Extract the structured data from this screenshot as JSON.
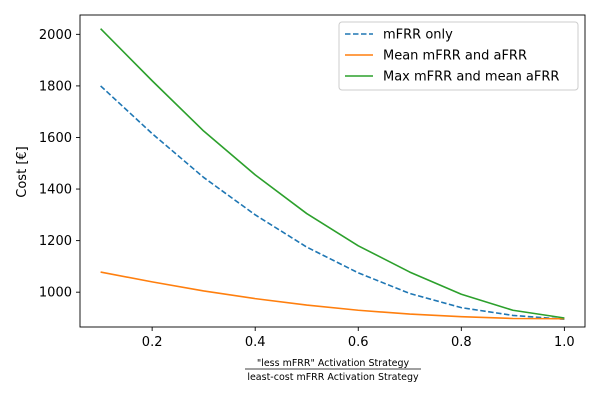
{
  "chart_data": {
    "type": "line",
    "title": "",
    "xlabel_numerator": "\"less mFRR\" Activation Strategy",
    "xlabel_denominator": "least-cost mFRR Activation Strategy",
    "ylabel": "Cost [€]",
    "xlim": [
      0.06,
      1.04
    ],
    "ylim": [
      865,
      2075
    ],
    "xticks": [
      0.2,
      0.4,
      0.6,
      0.8,
      1.0
    ],
    "xtick_labels": [
      "0.2",
      "0.4",
      "0.6",
      "0.8",
      "1.0"
    ],
    "yticks": [
      1000,
      1200,
      1400,
      1600,
      1800,
      2000
    ],
    "ytick_labels": [
      "1000",
      "1200",
      "1400",
      "1600",
      "1800",
      "2000"
    ],
    "grid": false,
    "legend_position": "top-right",
    "x": [
      0.1,
      0.2,
      0.3,
      0.4,
      0.5,
      0.6,
      0.7,
      0.8,
      0.9,
      1.0
    ],
    "series": [
      {
        "name": "mFRR only",
        "color": "#1f77b4",
        "style": "dashed",
        "values": [
          1800,
          1615,
          1445,
          1300,
          1175,
          1075,
          995,
          940,
          910,
          895
        ]
      },
      {
        "name": "Mean mFRR and aFRR",
        "color": "#ff7f0e",
        "style": "solid",
        "values": [
          1078,
          1040,
          1005,
          975,
          950,
          930,
          915,
          905,
          898,
          897
        ]
      },
      {
        "name": "Max mFRR and mean aFRR",
        "color": "#2ca02c",
        "style": "solid",
        "values": [
          2022,
          1820,
          1625,
          1455,
          1305,
          1180,
          1078,
          992,
          930,
          900
        ]
      }
    ]
  }
}
